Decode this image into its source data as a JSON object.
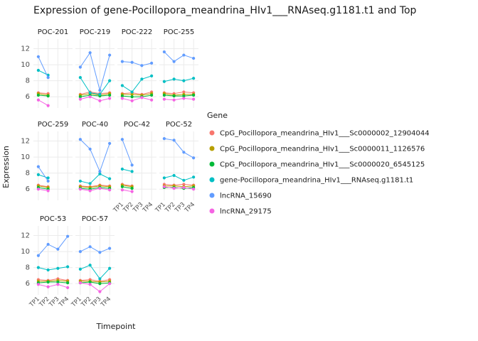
{
  "title": "Expression of gene-Pocillopora_meandrina_HIv1___RNAseq.g1181.t1 and Top",
  "axes": {
    "x_title": "Timepoint",
    "y_title": "Expression"
  },
  "legend": {
    "title": "Gene"
  },
  "chart_data": {
    "type": "line",
    "x": [
      "TP1",
      "TP2",
      "TP3",
      "TP4"
    ],
    "y_ticks": [
      6,
      8,
      10,
      12
    ],
    "ylim": [
      4.6,
      13.2
    ],
    "grid": true,
    "legend_position": "right",
    "series": [
      {
        "name": "CpG_Pocillopora_meandrina_HIv1___Sc0000002_12904044",
        "color": "#F8766D"
      },
      {
        "name": "CpG_Pocillopora_meandrina_HIv1___Sc0000011_1126576",
        "color": "#B79F00"
      },
      {
        "name": "CpG_Pocillopora_meandrina_HIv1___Sc0000020_6545125",
        "color": "#00BA38"
      },
      {
        "name": "gene-Pocillopora_meandrina_HIv1___RNAseq.g1181.t1",
        "color": "#00BFC4"
      },
      {
        "name": "lncRNA_15690",
        "color": "#619CFF"
      },
      {
        "name": "lncRNA_29175",
        "color": "#F564E3"
      }
    ],
    "facets": [
      {
        "name": "POC-201",
        "values": [
          [
            6.5,
            6.4,
            null,
            null
          ],
          [
            6.4,
            6.2,
            null,
            null
          ],
          [
            6.2,
            6.1,
            null,
            null
          ],
          [
            9.3,
            8.7,
            null,
            null
          ],
          [
            11.0,
            8.4,
            null,
            null
          ],
          [
            5.6,
            4.9,
            null,
            null
          ]
        ]
      },
      {
        "name": "POC-219",
        "values": [
          [
            6.3,
            6.6,
            6.4,
            6.5
          ],
          [
            6.2,
            6.4,
            6.2,
            6.4
          ],
          [
            6.0,
            6.2,
            6.1,
            6.2
          ],
          [
            8.4,
            6.5,
            6.3,
            8.0
          ],
          [
            9.7,
            11.5,
            6.8,
            11.2
          ],
          [
            5.7,
            6.0,
            5.5,
            5.8
          ]
        ]
      },
      {
        "name": "POC-222",
        "values": [
          [
            6.4,
            6.5,
            6.3,
            6.6
          ],
          [
            6.3,
            6.3,
            6.2,
            6.4
          ],
          [
            6.1,
            6.0,
            6.0,
            6.2
          ],
          [
            7.4,
            6.6,
            8.2,
            8.6
          ],
          [
            10.4,
            10.3,
            9.9,
            10.2
          ],
          [
            5.8,
            5.5,
            5.9,
            5.6
          ]
        ]
      },
      {
        "name": "POC-255",
        "values": [
          [
            6.5,
            6.4,
            6.6,
            6.5
          ],
          [
            6.4,
            6.2,
            6.3,
            6.3
          ],
          [
            6.2,
            6.1,
            6.1,
            6.2
          ],
          [
            7.9,
            8.2,
            8.0,
            8.3
          ],
          [
            11.6,
            10.4,
            11.2,
            10.8
          ],
          [
            5.7,
            5.6,
            5.8,
            5.7
          ]
        ]
      },
      {
        "name": "POC-259",
        "values": [
          [
            6.5,
            6.3,
            null,
            null
          ],
          [
            6.4,
            6.2,
            null,
            null
          ],
          [
            6.2,
            6.0,
            null,
            null
          ],
          [
            7.8,
            7.4,
            null,
            null
          ],
          [
            8.8,
            7.0,
            null,
            null
          ],
          [
            6.0,
            5.8,
            null,
            null
          ]
        ]
      },
      {
        "name": "POC-40",
        "values": [
          [
            6.4,
            6.3,
            6.5,
            6.4
          ],
          [
            6.3,
            6.2,
            6.4,
            6.3
          ],
          [
            6.1,
            6.0,
            6.2,
            6.1
          ],
          [
            7.0,
            6.7,
            7.9,
            7.3
          ],
          [
            12.2,
            11.0,
            8.2,
            11.7
          ],
          [
            6.0,
            5.8,
            6.1,
            5.9
          ]
        ]
      },
      {
        "name": "POC-42",
        "values": [
          [
            6.6,
            6.4,
            null,
            null
          ],
          [
            6.5,
            6.3,
            null,
            null
          ],
          [
            6.3,
            6.1,
            null,
            null
          ],
          [
            8.5,
            8.2,
            null,
            null
          ],
          [
            12.2,
            9.0,
            null,
            null
          ],
          [
            5.9,
            5.7,
            null,
            null
          ]
        ]
      },
      {
        "name": "POC-52",
        "values": [
          [
            6.6,
            6.5,
            6.6,
            6.5
          ],
          [
            6.4,
            6.4,
            6.3,
            6.4
          ],
          [
            6.2,
            6.2,
            6.1,
            6.2
          ],
          [
            7.4,
            7.7,
            7.1,
            7.5
          ],
          [
            12.3,
            12.1,
            10.6,
            9.9
          ],
          [
            6.3,
            6.1,
            6.2,
            6.0
          ]
        ]
      },
      {
        "name": "POC-53",
        "values": [
          [
            6.5,
            6.4,
            6.6,
            6.4
          ],
          [
            6.3,
            6.3,
            6.4,
            6.3
          ],
          [
            6.1,
            6.2,
            6.2,
            6.1
          ],
          [
            8.0,
            7.7,
            7.9,
            8.1
          ],
          [
            9.5,
            10.9,
            10.3,
            11.9
          ],
          [
            5.9,
            5.6,
            5.9,
            5.5
          ]
        ]
      },
      {
        "name": "POC-57",
        "values": [
          [
            6.4,
            6.5,
            6.3,
            6.5
          ],
          [
            6.3,
            6.3,
            6.2,
            6.3
          ],
          [
            6.1,
            6.2,
            6.0,
            6.1
          ],
          [
            7.8,
            8.3,
            6.6,
            7.9
          ],
          [
            10.0,
            10.6,
            9.9,
            10.4
          ],
          [
            6.1,
            5.9,
            5.0,
            6.0
          ]
        ]
      }
    ]
  }
}
